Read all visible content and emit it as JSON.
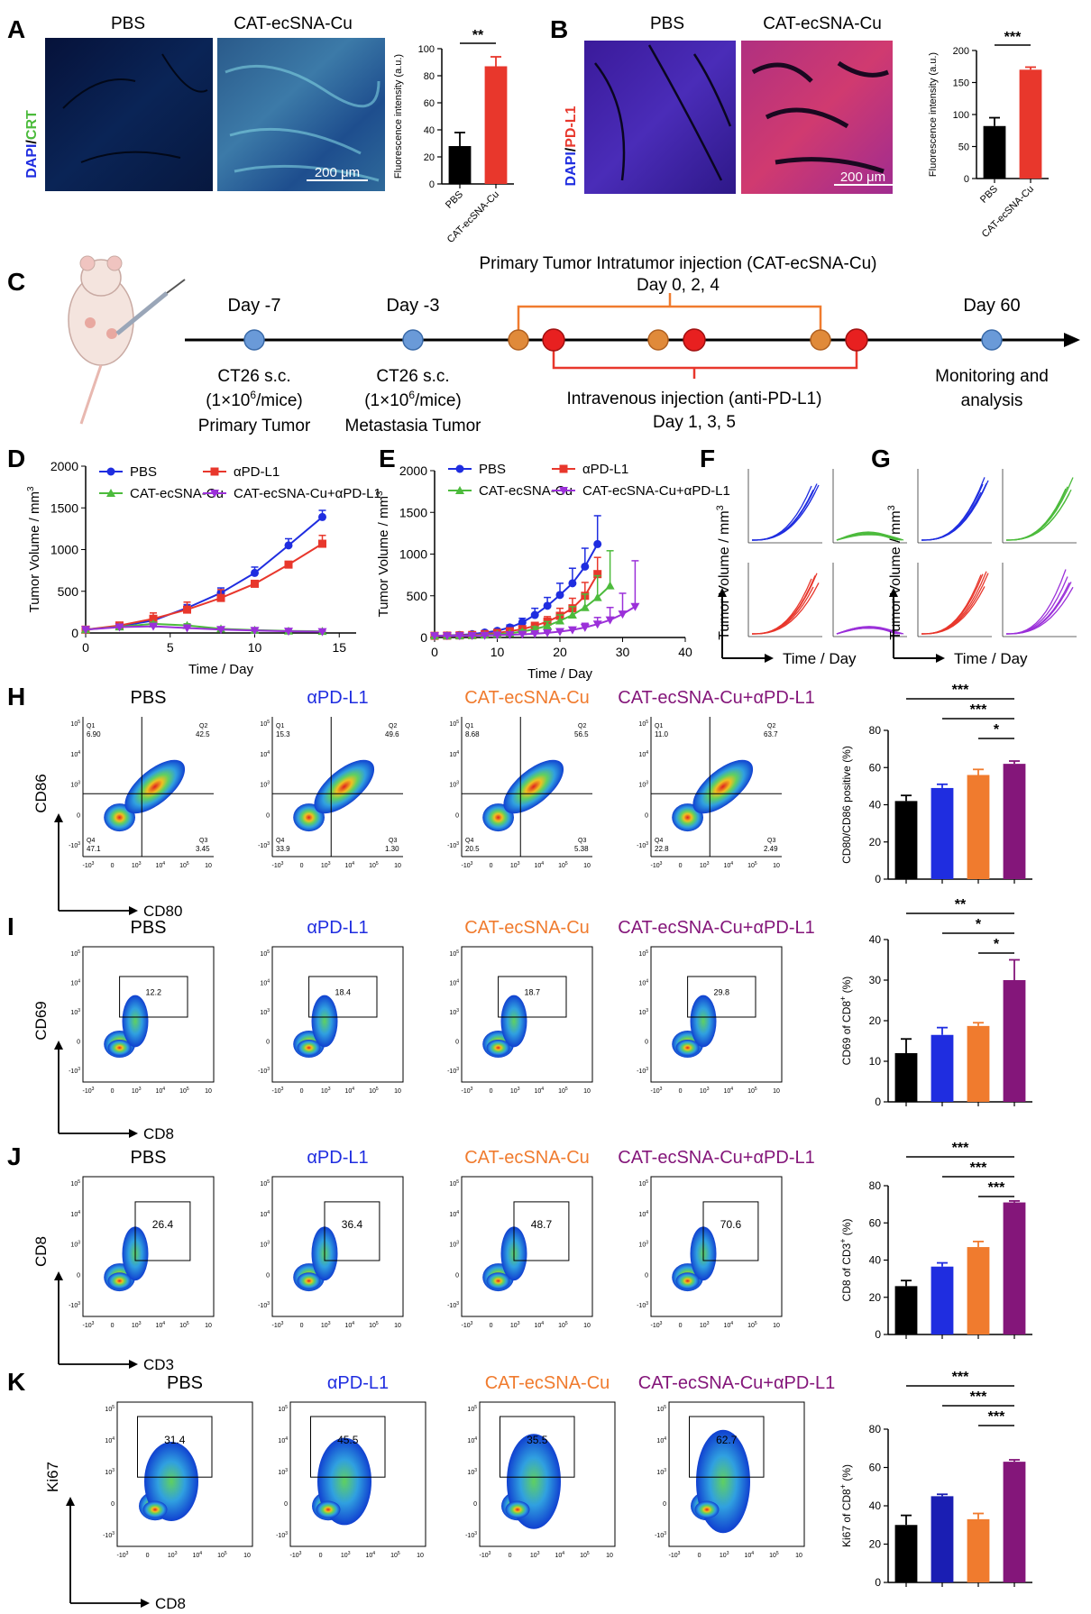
{
  "colors": {
    "black": "#000000",
    "red": "#e8372c",
    "blue": "#1f2de0",
    "green": "#4cbb3c",
    "purple": "#9b30d9",
    "orange": "#f07b2e",
    "barPurple": "#84167a",
    "darkBlue": "#1a1eb3"
  },
  "panelA": {
    "letter": "A",
    "imgLabels": [
      "PBS",
      "CAT-ecSNA-Cu"
    ],
    "stainA": "DAPI",
    "stainSep": "/",
    "stainB": "CRT",
    "scale": "200 μm",
    "chart_data": {
      "type": "bar",
      "categories": [
        "PBS",
        "CAT-ecSNA-Cu"
      ],
      "values": [
        28,
        87
      ],
      "errors": [
        10,
        7
      ],
      "ylabel": "Fluorescence intensity (a.u.)",
      "ylim": [
        0,
        100
      ],
      "yticks": [
        "0",
        "20",
        "40",
        "60",
        "80",
        "100"
      ],
      "sig": "**"
    }
  },
  "panelB": {
    "letter": "B",
    "imgLabels": [
      "PBS",
      "CAT-ecSNA-Cu"
    ],
    "stainA": "DAPI",
    "stainSep": "/",
    "stainB": "PD-L1",
    "scale": "200 μm",
    "chart_data": {
      "type": "bar",
      "categories": [
        "PBS",
        "CAT-ecSNA-Cu"
      ],
      "values": [
        82,
        170
      ],
      "errors": [
        13,
        4
      ],
      "ylabel": "Fluorescence intensity (a.u.)",
      "ylim": [
        0,
        200
      ],
      "yticks": [
        "0",
        "50",
        "100",
        "150",
        "200"
      ],
      "sig": "***"
    }
  },
  "panelC": {
    "letter": "C",
    "topTitle": "Primary Tumor Intratumor injection (CAT-ecSNA-Cu)",
    "topDays": "Day 0, 2, 4",
    "day1": "Day -7",
    "day2": "Day -3",
    "day3": "Day 60",
    "ct1": "CT26 s.c.",
    "dose1": "(1×10",
    "exp1": "6",
    "unit1": "/mice)",
    "lbl1": "Primary Tumor",
    "ct2": "CT26 s.c.",
    "dose2": "(1×10",
    "exp2": "6",
    "unit2": "/mice)",
    "lbl2": "Metastasia Tumor",
    "iv": "Intravenous injection (anti-PD-L1)",
    "ivDays": "Day 1, 3, 5",
    "mon1": "Monitoring and",
    "mon2": "analysis"
  },
  "panelD": {
    "letter": "D",
    "chart_data": {
      "type": "line",
      "xlabel": "Time / Day",
      "ylabel": "Tumor Volume / mm",
      "ylabelSup": "3",
      "xlim": [
        0,
        16
      ],
      "ylim": [
        0,
        2000
      ],
      "xticks": [
        "0",
        "5",
        "10",
        "15"
      ],
      "yticks": [
        "0",
        "500",
        "1000",
        "1500",
        "2000"
      ],
      "legend": [
        "PBS",
        "αPD-L1",
        "CAT-ecSNA-Cu",
        "CAT-ecSNA-Cu+αPD-L1"
      ],
      "series": [
        {
          "name": "PBS",
          "x": [
            0,
            2,
            4,
            6,
            8,
            10,
            12,
            14
          ],
          "y": [
            40,
            80,
            150,
            300,
            480,
            720,
            1050,
            1390
          ],
          "err": [
            10,
            15,
            30,
            40,
            60,
            70,
            80,
            80
          ]
        },
        {
          "name": "αPD-L1",
          "x": [
            0,
            2,
            4,
            6,
            8,
            10,
            12,
            14
          ],
          "y": [
            40,
            90,
            170,
            280,
            420,
            590,
            820,
            1070
          ],
          "err": [
            10,
            20,
            70,
            90,
            100,
            20,
            20,
            100
          ]
        },
        {
          "name": "CAT-ecSNA-Cu",
          "x": [
            0,
            2,
            4,
            6,
            8,
            10,
            12,
            14
          ],
          "y": [
            40,
            75,
            110,
            90,
            50,
            35,
            25,
            20
          ],
          "err": [
            5,
            10,
            20,
            20,
            10,
            5,
            5,
            5
          ]
        },
        {
          "name": "CAT-ecSNA-Cu+αPD-L1",
          "x": [
            0,
            2,
            4,
            6,
            8,
            10,
            12,
            14
          ],
          "y": [
            40,
            70,
            80,
            60,
            40,
            30,
            20,
            15
          ],
          "err": [
            5,
            10,
            10,
            10,
            5,
            5,
            5,
            5
          ]
        }
      ]
    }
  },
  "panelE": {
    "letter": "E",
    "chart_data": {
      "type": "line",
      "xlabel": "Time / Day",
      "ylabel": "Tumor Volume / mm",
      "ylabelSup": "3",
      "xlim": [
        0,
        40
      ],
      "ylim": [
        0,
        2000
      ],
      "xticks": [
        "0",
        "10",
        "20",
        "30",
        "40"
      ],
      "yticks": [
        "0",
        "500",
        "1000",
        "1500",
        "2000"
      ],
      "legend": [
        "PBS",
        "αPD-L1",
        "CAT-ecSNA-Cu",
        "CAT-ecSNA-Cu+αPD-L1"
      ],
      "series": [
        {
          "name": "PBS",
          "x": [
            0,
            2,
            4,
            6,
            8,
            10,
            12,
            14,
            16,
            18,
            20,
            22,
            24,
            26
          ],
          "y": [
            20,
            25,
            30,
            40,
            60,
            80,
            120,
            180,
            270,
            380,
            510,
            650,
            850,
            1120
          ],
          "err": [
            5,
            5,
            5,
            10,
            10,
            20,
            30,
            50,
            80,
            100,
            140,
            180,
            220,
            340
          ]
        },
        {
          "name": "αPD-L1",
          "x": [
            0,
            2,
            4,
            6,
            8,
            10,
            12,
            14,
            16,
            18,
            20,
            22,
            24,
            26
          ],
          "y": [
            20,
            22,
            25,
            30,
            40,
            55,
            75,
            100,
            140,
            190,
            260,
            350,
            500,
            760
          ],
          "err": [
            5,
            5,
            5,
            5,
            10,
            10,
            20,
            30,
            40,
            60,
            90,
            120,
            160,
            200
          ]
        },
        {
          "name": "CAT-ecSNA-Cu",
          "x": [
            0,
            2,
            4,
            6,
            8,
            10,
            12,
            14,
            16,
            18,
            20,
            22,
            24,
            26,
            28
          ],
          "y": [
            20,
            20,
            22,
            25,
            30,
            40,
            50,
            70,
            100,
            140,
            200,
            270,
            360,
            480,
            620
          ],
          "err": [
            5,
            5,
            5,
            5,
            5,
            10,
            10,
            20,
            30,
            50,
            70,
            100,
            160,
            260,
            420
          ]
        },
        {
          "name": "CAT-ecSNA-Cu+αPD-L1",
          "x": [
            0,
            2,
            4,
            6,
            8,
            10,
            12,
            14,
            16,
            18,
            20,
            22,
            24,
            26,
            28,
            30,
            32
          ],
          "y": [
            20,
            20,
            20,
            22,
            25,
            28,
            32,
            38,
            45,
            55,
            70,
            90,
            120,
            160,
            210,
            280,
            370
          ],
          "err": [
            5,
            5,
            5,
            5,
            5,
            5,
            5,
            5,
            10,
            10,
            20,
            30,
            50,
            80,
            150,
            250,
            550
          ]
        }
      ]
    }
  },
  "panelF": {
    "letter": "F",
    "ylabel": "Tumor Volume / mm",
    "ylabelSup": "3",
    "xlabel": "Time / Day"
  },
  "panelG": {
    "letter": "G",
    "ylabel": "Tumor Volume / mm",
    "ylabelSup": "3",
    "xlabel": "Time / Day"
  },
  "groups": [
    "PBS",
    "αPD-L1",
    "CAT-ecSNA-Cu",
    "CAT-ecSNA-Cu+αPD-L1"
  ],
  "panelH": {
    "letter": "H",
    "xaxis": "CD80",
    "yaxis": "CD86",
    "quadrants": [
      {
        "q1": "6.90",
        "q2": "42.5",
        "q3": "3.45",
        "q4": "47.1"
      },
      {
        "q1": "15.3",
        "q2": "49.6",
        "q3": "1.30",
        "q4": "33.9"
      },
      {
        "q1": "8.68",
        "q2": "56.5",
        "q3": "5.38",
        "q4": "20.5"
      },
      {
        "q1": "11.0",
        "q2": "63.7",
        "q3": "2.49",
        "q4": "22.8"
      }
    ],
    "chart_data": {
      "type": "bar",
      "categories": [
        "PBS",
        "αPD-L1",
        "CAT-ecSNA-Cu",
        "CAT-ecSNA-Cu+αPD-L1"
      ],
      "values": [
        42,
        49,
        56,
        62
      ],
      "errors": [
        3,
        2,
        3,
        1.5
      ],
      "ylabel": "CD80/CD86 positive (%)",
      "ylim": [
        0,
        80
      ],
      "yticks": [
        "0",
        "20",
        "40",
        "60",
        "80"
      ],
      "sig": [
        "***",
        "***",
        "*"
      ]
    }
  },
  "panelI": {
    "letter": "I",
    "xaxis": "CD8",
    "yaxis": "CD69",
    "gates": [
      "12.2",
      "18.4",
      "18.7",
      "29.8"
    ],
    "chart_data": {
      "type": "bar",
      "categories": [
        "PBS",
        "αPD-L1",
        "CAT-ecSNA-Cu",
        "CAT-ecSNA-Cu+αPD-L1"
      ],
      "values": [
        12,
        16.5,
        18.7,
        30
      ],
      "errors": [
        3.5,
        1.8,
        0.8,
        5
      ],
      "ylabel": "CD69 of CD8",
      "ylabelSup": "+",
      "ylabelEnd": " (%)",
      "ylim": [
        0,
        40
      ],
      "yticks": [
        "0",
        "10",
        "20",
        "30",
        "40"
      ],
      "sig": [
        "**",
        "*",
        "*"
      ]
    }
  },
  "panelJ": {
    "letter": "J",
    "xaxis": "CD3",
    "yaxis": "CD8",
    "gates": [
      "26.4",
      "36.4",
      "48.7",
      "70.6"
    ],
    "chart_data": {
      "type": "bar",
      "categories": [
        "PBS",
        "αPD-L1",
        "CAT-ecSNA-Cu",
        "CAT-ecSNA-Cu+αPD-L1"
      ],
      "values": [
        26,
        36.5,
        47,
        71
      ],
      "errors": [
        3,
        2,
        3,
        0.8
      ],
      "ylabel": "CD8 of CD3",
      "ylabelSup": "+",
      "ylabelEnd": " (%)",
      "ylim": [
        0,
        80
      ],
      "yticks": [
        "0",
        "20",
        "40",
        "60",
        "80"
      ],
      "sig": [
        "***",
        "***",
        "***"
      ]
    }
  },
  "panelK": {
    "letter": "K",
    "xaxis": "CD8",
    "yaxis": "Ki67",
    "gates": [
      "31.4",
      "45.5",
      "35.5",
      "62.7"
    ],
    "chart_data": {
      "type": "bar",
      "categories": [
        "PBS",
        "αPD-L1",
        "CAT-ecSNA-Cu",
        "CAT-ecSNA-Cu+αPD-L1"
      ],
      "values": [
        30,
        45,
        33,
        63
      ],
      "errors": [
        5,
        1,
        3,
        1
      ],
      "ylabel": "Ki67 of CD8",
      "ylabelSup": "+",
      "ylabelEnd": " (%)",
      "ylim": [
        0,
        80
      ],
      "yticks": [
        "0",
        "20",
        "40",
        "60",
        "80"
      ],
      "sig": [
        "***",
        "***",
        "***"
      ]
    }
  },
  "flowTicks": {
    "x": [
      "-10",
      "0",
      "10",
      "10",
      "10",
      "10"
    ],
    "xExp": [
      "3",
      "",
      "3",
      "4",
      "5",
      ""
    ],
    "y": [
      "10",
      "10",
      "10",
      "0",
      "-10"
    ],
    "yExp": [
      "5",
      "4",
      "3",
      "",
      "3"
    ]
  }
}
